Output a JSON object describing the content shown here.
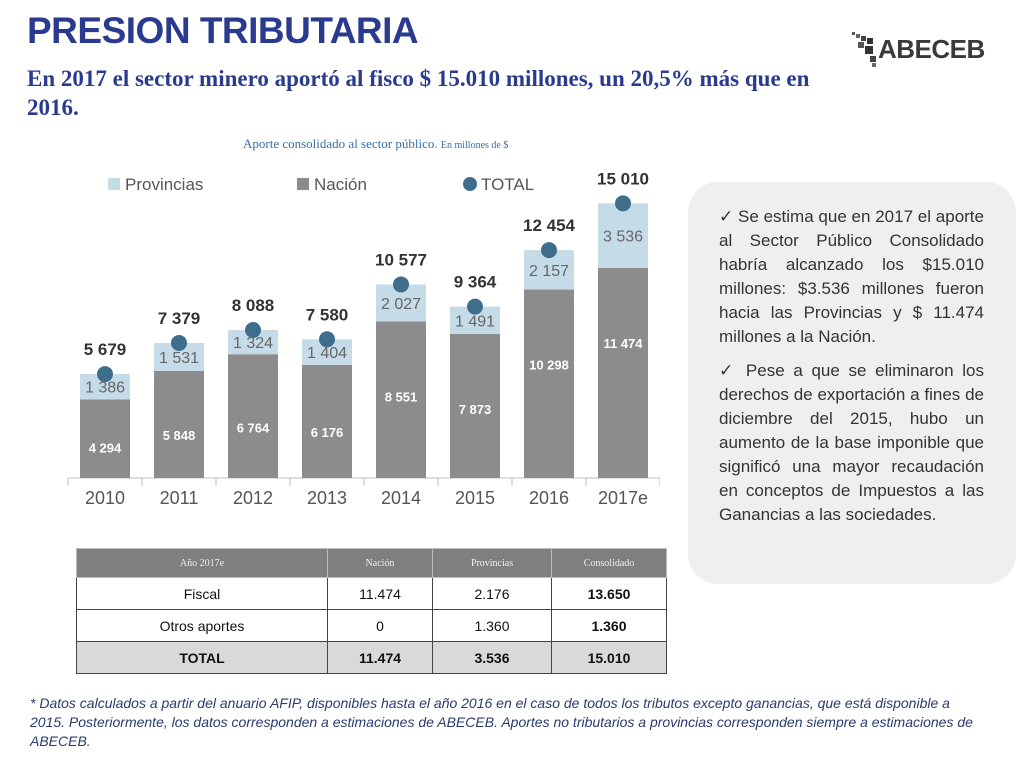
{
  "title": "PRESION TRIBUTARIA",
  "logo_text": "ABECEB",
  "subtitle": "En 2017 el sector minero aportó al fisco $ 15.010 millones, un 20,5% más que en 2016.",
  "chart_caption": "Aporte consolidado al sector público.",
  "chart_caption_unit": "En millones de $",
  "chart_data": {
    "type": "bar",
    "stacked": true,
    "categories": [
      "2010",
      "2011",
      "2012",
      "2013",
      "2014",
      "2015",
      "2016",
      "2017e"
    ],
    "series": [
      {
        "name": "Nación",
        "values": [
          4294,
          5848,
          6764,
          6176,
          8551,
          7873,
          10298,
          11474
        ],
        "labels": [
          "4 294",
          "5 848",
          "6 764",
          "6 176",
          "8 551",
          "7 873",
          "10 298",
          "11 474"
        ]
      },
      {
        "name": "Provincias",
        "values": [
          1386,
          1531,
          1324,
          1404,
          2027,
          1491,
          2157,
          3536
        ],
        "labels": [
          "1 386",
          "1 531",
          "1 324",
          "1 404",
          "2 027",
          "1 491",
          "2 157",
          "3 536"
        ]
      },
      {
        "name": "TOTAL",
        "type": "scatter",
        "values": [
          5679,
          7379,
          8088,
          7580,
          10577,
          9364,
          12454,
          15010
        ],
        "labels": [
          "5 679",
          "7 379",
          "8 088",
          "7 580",
          "10 577",
          "9 364",
          "12 454",
          "15 010"
        ]
      }
    ],
    "legend_position": "top",
    "colors": {
      "nacion": "#8c8c8c",
      "provincias": "#c6dbe8",
      "total": "#3f6e8c"
    },
    "ylim": [
      0,
      16000
    ]
  },
  "sidebar": {
    "bullets": [
      "Se estima que en 2017 el aporte al Sector Público Consolidado habría alcanzado los $15.010 millones: $3.536 millones fueron hacia las Provincias y $ 11.474 millones a la Nación.",
      "Pese a que se eliminaron los derechos de exportación a fines de diciembre del 2015, hubo un aumento de la base imponible que significó una mayor recaudación en conceptos de Impuestos a las Ganancias a las sociedades."
    ]
  },
  "table": {
    "headers": [
      "Año 2017e",
      "Nación",
      "Provincias",
      "Consolidado"
    ],
    "rows": [
      {
        "label": "Fiscal",
        "nacion": "11.474",
        "provincias": "2.176",
        "consolidado": "13.650"
      },
      {
        "label": "Otros aportes",
        "nacion": "0",
        "provincias": "1.360",
        "consolidado": "1.360"
      },
      {
        "label": "TOTAL",
        "nacion": "11.474",
        "provincias": "3.536",
        "consolidado": "15.010"
      }
    ]
  },
  "footnote": "* Datos calculados a partir del anuario AFIP, disponibles hasta el año 2016 en el caso de todos los tributos excepto ganancias, que está disponible a 2015. Posteriormente, los datos corresponden a estimaciones de ABECEB. Aportes no tributarios a provincias corresponden siempre a estimaciones de ABECEB."
}
